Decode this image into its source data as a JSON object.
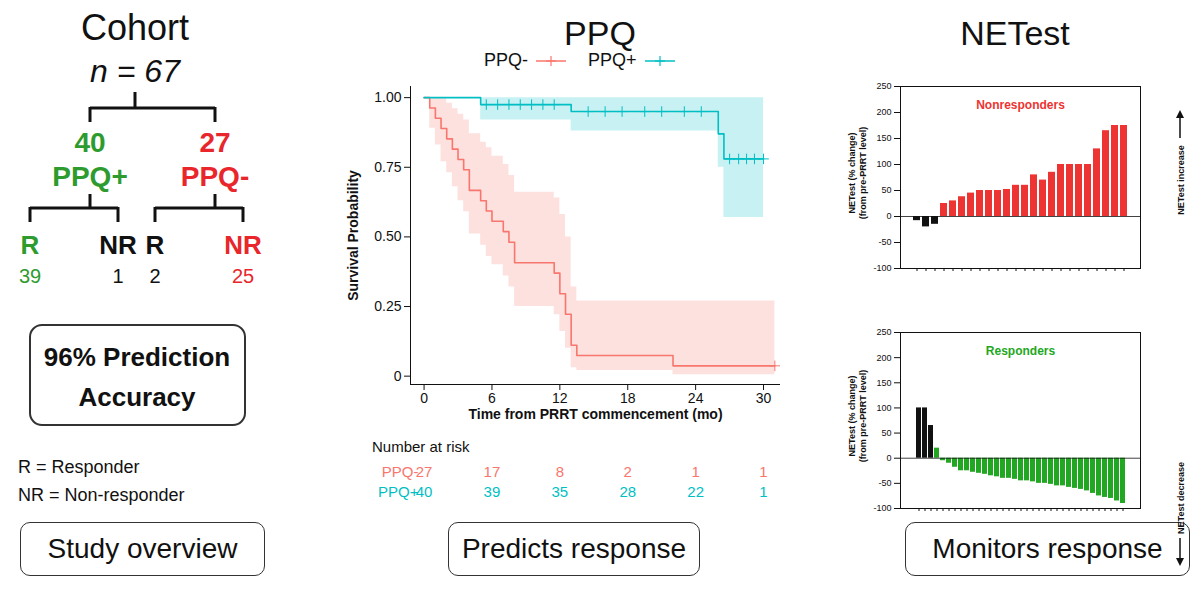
{
  "diagram": {
    "title": "Cohort",
    "n_label": "n = 67",
    "groups": [
      {
        "count": 40,
        "label": "PPQ+",
        "color": "#2e9b2e",
        "children": [
          {
            "label": "R",
            "count": 39,
            "color": "#2e9b2e"
          },
          {
            "label": "NR",
            "count": 1,
            "color": "#111111"
          }
        ]
      },
      {
        "count": 27,
        "label": "PPQ-",
        "color": "#e8262b",
        "children": [
          {
            "label": "R",
            "count": 2,
            "color": "#111111"
          },
          {
            "label": "NR",
            "count": 25,
            "color": "#e8262b"
          }
        ]
      }
    ],
    "box": [
      "96% Prediction",
      "Accuracy"
    ],
    "key": [
      "R = Responder",
      "NR = Non-responder"
    ]
  },
  "group_title": "NETest",
  "captions": [
    "Study overview",
    "Predicts response",
    "Monitors response"
  ],
  "chart_data": [
    {
      "type": "line",
      "title": "PPQ",
      "xlabel": "Time from PRRT commencement (mo)",
      "ylabel": "Survival Probability",
      "xlim": [
        -1.2,
        31.5
      ],
      "ylim": [
        -0.03,
        1.04
      ],
      "xticks": [
        0,
        6,
        12,
        18,
        24,
        30
      ],
      "yticks": [
        0,
        0.25,
        {
          "value": 0.5,
          "label": "0.50"
        },
        0.75,
        {
          "value": 1,
          "label": "1.00"
        }
      ],
      "legend": "top",
      "line_style": "step",
      "series": [
        {
          "name": "PPQ-",
          "color": "#F8766D",
          "x": [
            0,
            0.5,
            1,
            1.5,
            2,
            2.5,
            3,
            3.5,
            4,
            5,
            5.5,
            6,
            7,
            7.5,
            8,
            11.5,
            12,
            12.5,
            13,
            13.5,
            22,
            31
          ],
          "values": [
            1,
            0.963,
            0.926,
            0.889,
            0.852,
            0.815,
            0.778,
            0.741,
            0.667,
            0.63,
            0.593,
            0.556,
            0.519,
            0.481,
            0.407,
            0.37,
            0.296,
            0.222,
            0.111,
            0.074,
            0.037,
            0.037
          ],
          "lower": [
            1,
            0.89,
            0.83,
            0.77,
            0.73,
            0.68,
            0.63,
            0.59,
            0.51,
            0.47,
            0.43,
            0.4,
            0.36,
            0.32,
            0.25,
            0.22,
            0.16,
            0.1,
            0.03,
            0.02,
            0.005,
            0.005
          ],
          "upper": [
            1,
            1,
            1,
            1,
            0.98,
            0.96,
            0.94,
            0.92,
            0.87,
            0.84,
            0.82,
            0.79,
            0.76,
            0.72,
            0.66,
            0.64,
            0.58,
            0.5,
            0.32,
            0.27,
            0.27,
            0.27
          ],
          "censored_x": [
            31
          ],
          "censored_y": [
            0.037
          ]
        },
        {
          "name": "PPQ+",
          "color": "#00BFC4",
          "x": [
            0,
            5,
            13,
            26,
            26.5,
            30
          ],
          "values": [
            1,
            0.975,
            0.95,
            0.87,
            0.78,
            0.78
          ],
          "lower": [
            1,
            0.92,
            0.88,
            0.75,
            0.57,
            0.57
          ],
          "upper": [
            1,
            1,
            1,
            1,
            1,
            1
          ],
          "censored_x": [
            5.5,
            6.5,
            7.5,
            8.5,
            9.5,
            10.5,
            11.5,
            14.5,
            16,
            17.5,
            19.5,
            21,
            23,
            24.5,
            27,
            27.8,
            28.5,
            29.2,
            30
          ],
          "censored_y": [
            0.975,
            0.975,
            0.975,
            0.975,
            0.975,
            0.975,
            0.975,
            0.95,
            0.95,
            0.95,
            0.95,
            0.95,
            0.95,
            0.95,
            0.78,
            0.78,
            0.78,
            0.78,
            0.78
          ]
        }
      ],
      "at_risk": {
        "title": "Number at risk",
        "x": [
          0,
          6,
          12,
          18,
          24,
          30
        ],
        "series": [
          {
            "name": "PPQ-",
            "values": [
              27,
              17,
              8,
              2,
              1,
              1
            ]
          },
          {
            "name": "PPQ+",
            "values": [
              40,
              39,
              35,
              28,
              22,
              1
            ]
          }
        ]
      }
    },
    {
      "type": "bar",
      "title": "Nonresponders",
      "color": "#ee3333",
      "ylabel": [
        "NETest (% change)",
        "(from pre-PRRT level)"
      ],
      "annotation": "NETest increase",
      "annotation_direction": "up",
      "categories": [
        null,
        null,
        null,
        null,
        null,
        null,
        null,
        null,
        null,
        null,
        null,
        null,
        null,
        null,
        null,
        null,
        null,
        null,
        null,
        null,
        null,
        null,
        null,
        null
      ],
      "values": [
        -8,
        -20,
        -15,
        25,
        30,
        38,
        45,
        50,
        50,
        50,
        52,
        60,
        60,
        80,
        70,
        85,
        100,
        100,
        100,
        100,
        130,
        165,
        175,
        175
      ],
      "colors": [
        "#111111",
        "#111111",
        "#111111",
        "#ee3333",
        "#ee3333",
        "#ee3333",
        "#ee3333",
        "#ee3333",
        "#ee3333",
        "#ee3333",
        "#ee3333",
        "#ee3333",
        "#ee3333",
        "#ee3333",
        "#ee3333",
        "#ee3333",
        "#ee3333",
        "#ee3333",
        "#ee3333",
        "#ee3333",
        "#ee3333",
        "#ee3333",
        "#ee3333",
        "#ee3333"
      ],
      "ylim": [
        -100,
        250
      ],
      "yticks": [
        -100,
        -50,
        0,
        50,
        100,
        150,
        200,
        250
      ],
      "tick_labels": "y"
    },
    {
      "type": "bar",
      "title": "Responders",
      "color": "#22a722",
      "ylabel": [
        "NETest (% change)",
        "(from pre-PRRT level)"
      ],
      "annotation": "NETest decrease",
      "annotation_direction": "down",
      "categories": [
        null,
        null,
        null,
        null,
        null,
        null,
        null,
        null,
        null,
        null,
        null,
        null,
        null,
        null,
        null,
        null,
        null,
        null,
        null,
        null,
        null,
        null,
        null,
        null,
        null,
        null,
        null,
        null,
        null,
        null,
        null,
        null,
        null,
        null,
        null
      ],
      "values": [
        100,
        100,
        65,
        20,
        -5,
        -10,
        -18,
        -25,
        -25,
        -28,
        -30,
        -32,
        -35,
        -37,
        -40,
        -40,
        -42,
        -45,
        -45,
        -47,
        -50,
        -50,
        -52,
        -55,
        -55,
        -58,
        -60,
        -62,
        -65,
        -70,
        -75,
        -78,
        -80,
        -85,
        -90
      ],
      "colors": [
        "#111111",
        "#111111",
        "#111111",
        "#22a722",
        "#22a722",
        "#22a722",
        "#22a722",
        "#22a722",
        "#22a722",
        "#22a722",
        "#22a722",
        "#22a722",
        "#22a722",
        "#22a722",
        "#22a722",
        "#22a722",
        "#22a722",
        "#22a722",
        "#22a722",
        "#22a722",
        "#22a722",
        "#22a722",
        "#22a722",
        "#22a722",
        "#22a722",
        "#22a722",
        "#22a722",
        "#22a722",
        "#22a722",
        "#22a722",
        "#22a722",
        "#22a722",
        "#22a722",
        "#22a722",
        "#22a722"
      ],
      "ylim": [
        -100,
        250
      ],
      "yticks": [
        -100,
        -50,
        0,
        50,
        100,
        150,
        200,
        250
      ],
      "tick_labels": "y"
    }
  ]
}
